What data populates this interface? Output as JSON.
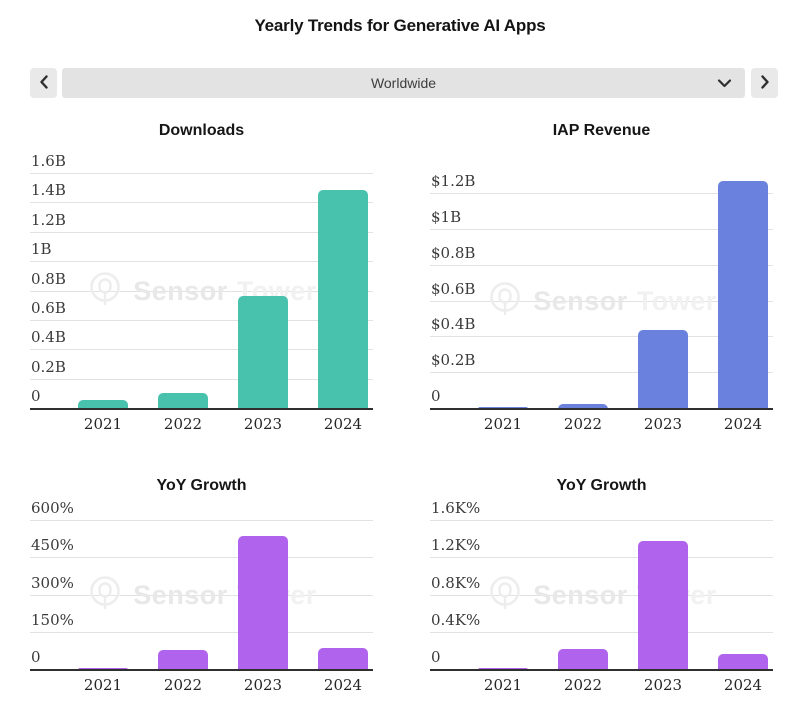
{
  "page_title": "Yearly Trends for Generative AI Apps",
  "selector": {
    "value": "Worldwide"
  },
  "icons": {
    "prev": "chevron-left-icon",
    "next": "chevron-right-icon",
    "dropdown": "chevron-down-icon",
    "watermark_logo": "sensor-tower-logo-icon"
  },
  "watermark": {
    "brand_first": "Sensor",
    "brand_second": "Tower"
  },
  "colors": {
    "downloads_bar": "#48c2ad",
    "revenue_bar": "#6a82de",
    "growth_bar": "#b064ee",
    "axis": "#2f2f2f",
    "gridline": "#e2e2e2"
  },
  "chart_data": [
    {
      "type": "bar",
      "title": "Downloads",
      "categories": [
        "2021",
        "2022",
        "2023",
        "2024"
      ],
      "values": [
        0.06,
        0.11,
        0.77,
        1.49
      ],
      "unit": "billions of downloads",
      "bar_color": "#48c2ad",
      "ylim": [
        0,
        1.6
      ],
      "grid": true,
      "legend": "none",
      "yticks": [
        {
          "value": 1.6,
          "label": "1.6B"
        },
        {
          "value": 1.4,
          "label": "1.4B"
        },
        {
          "value": 1.2,
          "label": "1.2B"
        },
        {
          "value": 1.0,
          "label": "1B"
        },
        {
          "value": 0.8,
          "label": "0.8B"
        },
        {
          "value": 0.6,
          "label": "0.6B"
        },
        {
          "value": 0.4,
          "label": "0.4B"
        },
        {
          "value": 0.2,
          "label": "0.2B"
        },
        {
          "value": 0,
          "label": "0"
        }
      ]
    },
    {
      "type": "bar",
      "title": "IAP Revenue",
      "categories": [
        "2021",
        "2022",
        "2023",
        "2024"
      ],
      "values": [
        0.01,
        0.03,
        0.44,
        1.27
      ],
      "unit": "billions of USD",
      "bar_color": "#6a82de",
      "ylim": [
        0,
        1.2
      ],
      "grid": true,
      "legend": "none",
      "yticks": [
        {
          "value": 1.2,
          "label": "$1.2B"
        },
        {
          "value": 1.0,
          "label": "$1B"
        },
        {
          "value": 0.8,
          "label": "$0.8B"
        },
        {
          "value": 0.6,
          "label": "$0.6B"
        },
        {
          "value": 0.4,
          "label": "$0.4B"
        },
        {
          "value": 0.2,
          "label": "$0.2B"
        },
        {
          "value": 0,
          "label": "0"
        }
      ]
    },
    {
      "type": "bar",
      "title": "YoY Growth",
      "categories": [
        "2021",
        "2022",
        "2023",
        "2024"
      ],
      "values": [
        5,
        80,
        540,
        90
      ],
      "unit": "percent (downloads growth)",
      "bar_color": "#b064ee",
      "ylim": [
        0,
        600
      ],
      "grid": true,
      "legend": "none",
      "yticks": [
        {
          "value": 600,
          "label": "600%"
        },
        {
          "value": 450,
          "label": "450%"
        },
        {
          "value": 300,
          "label": "300%"
        },
        {
          "value": 150,
          "label": "150%"
        },
        {
          "value": 0,
          "label": "0"
        }
      ]
    },
    {
      "type": "bar",
      "title": "YoY Growth",
      "categories": [
        "2021",
        "2022",
        "2023",
        "2024"
      ],
      "values": [
        20,
        225,
        1390,
        170
      ],
      "unit": "percent (revenue growth)",
      "bar_color": "#b064ee",
      "ylim": [
        0,
        1600
      ],
      "grid": true,
      "legend": "none",
      "yticks": [
        {
          "value": 1600,
          "label": "1.6K%"
        },
        {
          "value": 1200,
          "label": "1.2K%"
        },
        {
          "value": 800,
          "label": "0.8K%"
        },
        {
          "value": 400,
          "label": "0.4K%"
        },
        {
          "value": 0,
          "label": "0"
        }
      ]
    }
  ]
}
